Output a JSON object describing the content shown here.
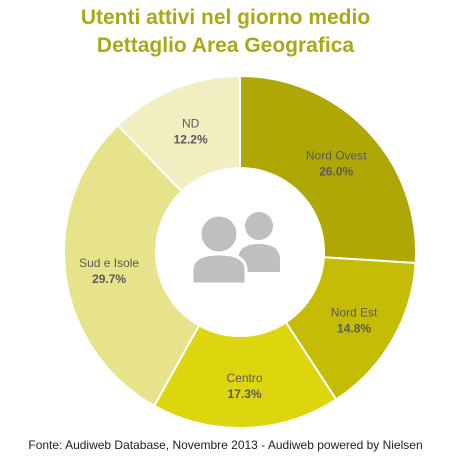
{
  "chart_data": {
    "type": "pie",
    "title": "Utenti attivi nel giorno medio",
    "subtitle": "Dettaglio Area Geografica",
    "slices": [
      {
        "label": "Nord Ovest",
        "value": 26.0,
        "value_label": "26.0%",
        "color": "#aea706"
      },
      {
        "label": "Nord Est",
        "value": 14.8,
        "value_label": "14.8%",
        "color": "#c5bc05"
      },
      {
        "label": "Centro",
        "value": 17.3,
        "value_label": "17.3%",
        "color": "#ddd60f"
      },
      {
        "label": "Sud e Isole",
        "value": 29.7,
        "value_label": "29.7%",
        "color": "#e6e38a"
      },
      {
        "label": "ND",
        "value": 12.2,
        "value_label": "12.2%",
        "color": "#f1efc2"
      }
    ],
    "center_icon": "users-icon",
    "colors": {
      "title": "#a9a815",
      "label_text": "#5a5a5a",
      "icon": "#bfbfbf"
    }
  },
  "footer": {
    "source": "Fonte: Audiweb Database, Novembre 2013 - Audiweb powered by Nielsen"
  }
}
